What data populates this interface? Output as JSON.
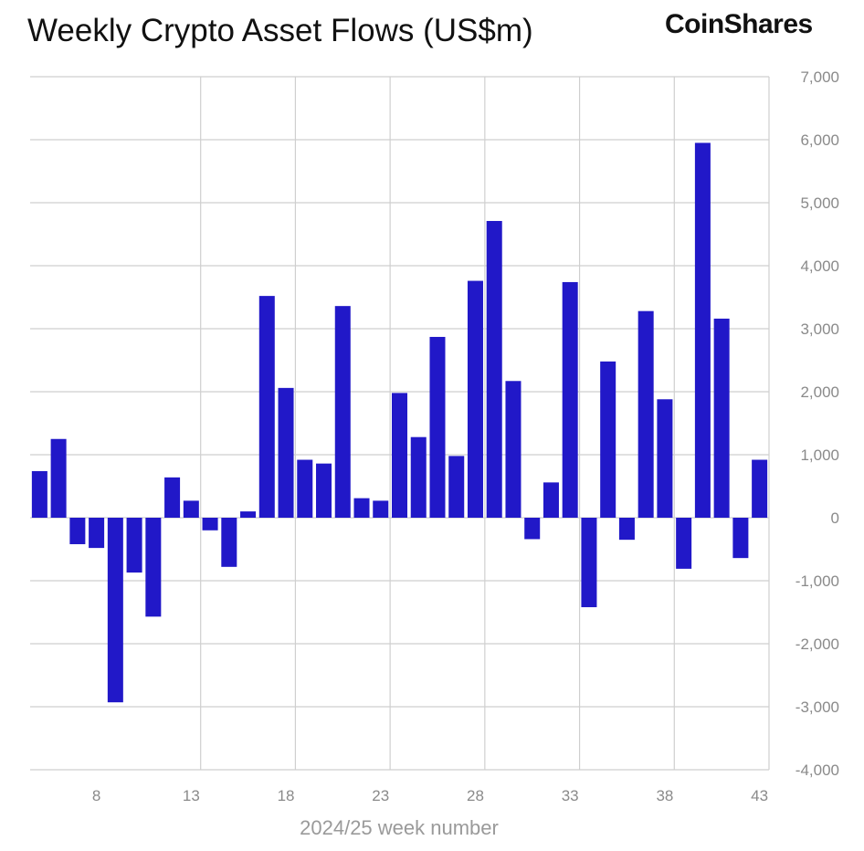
{
  "header": {
    "title": "Weekly Crypto Asset Flows (US$m)",
    "brand": "CoinShares"
  },
  "chart_data": {
    "type": "bar",
    "title": "Weekly Crypto Asset Flows (US$m)",
    "xlabel": "2024/25 week number",
    "ylabel": "",
    "ylim": [
      -4000,
      7000
    ],
    "y_ticks": [
      7000,
      6000,
      5000,
      4000,
      3000,
      2000,
      1000,
      0,
      -1000,
      -2000,
      -3000,
      -4000
    ],
    "y_tick_labels": [
      "7,000",
      "6,000",
      "5,000",
      "4,000",
      "3,000",
      "2,000",
      "1,000",
      "0",
      "-1,000",
      "-2,000",
      "-3,000",
      "-4,000"
    ],
    "x_ticks": [
      8,
      13,
      18,
      23,
      28,
      33,
      38,
      43
    ],
    "x_tick_labels": [
      "8",
      "13",
      "18",
      "23",
      "28",
      "33",
      "38",
      "43"
    ],
    "y_axis_side": "right",
    "grid": true,
    "bar_color": "#2118c8",
    "categories": [
      5,
      6,
      7,
      8,
      9,
      10,
      11,
      12,
      13,
      14,
      15,
      16,
      17,
      18,
      19,
      20,
      21,
      22,
      23,
      24,
      25,
      26,
      27,
      28,
      29,
      30,
      31,
      32,
      33,
      34,
      35,
      36,
      37,
      38,
      39,
      40,
      41,
      42,
      43
    ],
    "values": [
      740,
      1250,
      -420,
      -480,
      -2930,
      -870,
      -1570,
      640,
      270,
      -200,
      -780,
      100,
      3520,
      2060,
      920,
      860,
      3360,
      310,
      270,
      1980,
      1280,
      2870,
      980,
      3760,
      4710,
      2170,
      -340,
      560,
      3740,
      -1420,
      2480,
      -350,
      3280,
      1880,
      -810,
      5950,
      3160,
      -640,
      920
    ]
  }
}
